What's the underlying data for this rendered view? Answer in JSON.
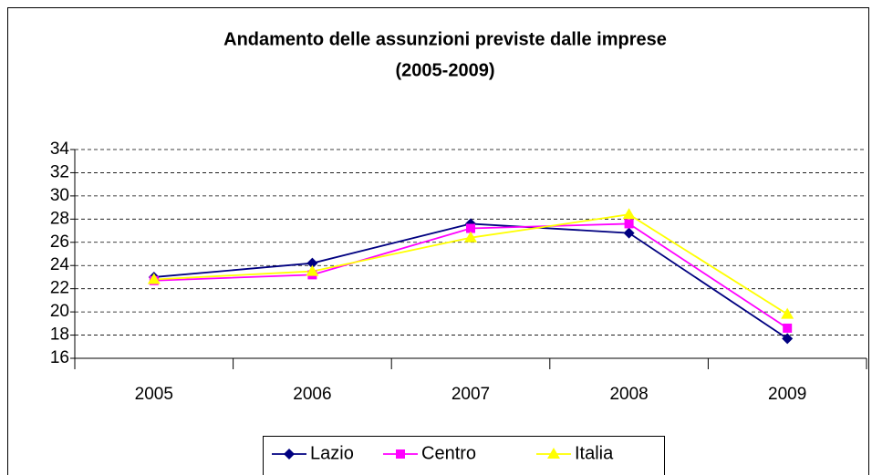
{
  "chart_data": {
    "type": "line",
    "title": [
      "Andamento delle assunzioni previste dalle imprese",
      "(2005-2009)"
    ],
    "categories": [
      "2005",
      "2006",
      "2007",
      "2008",
      "2009"
    ],
    "series": [
      {
        "name": "Lazio",
        "color": "#000080",
        "marker": "diamond",
        "values": [
          23.0,
          24.2,
          27.6,
          26.8,
          17.7
        ]
      },
      {
        "name": "Centro",
        "color": "#FF00FF",
        "marker": "square",
        "values": [
          22.7,
          23.2,
          27.2,
          27.6,
          18.6
        ]
      },
      {
        "name": "Italia",
        "color": "#FFFF00",
        "marker": "triangle",
        "values": [
          22.8,
          23.5,
          26.4,
          28.4,
          19.8
        ]
      }
    ],
    "ylim": [
      16,
      34
    ],
    "yticks": [
      16,
      18,
      20,
      22,
      24,
      26,
      28,
      30,
      32,
      34
    ],
    "grid": true,
    "legend": "bottom"
  }
}
